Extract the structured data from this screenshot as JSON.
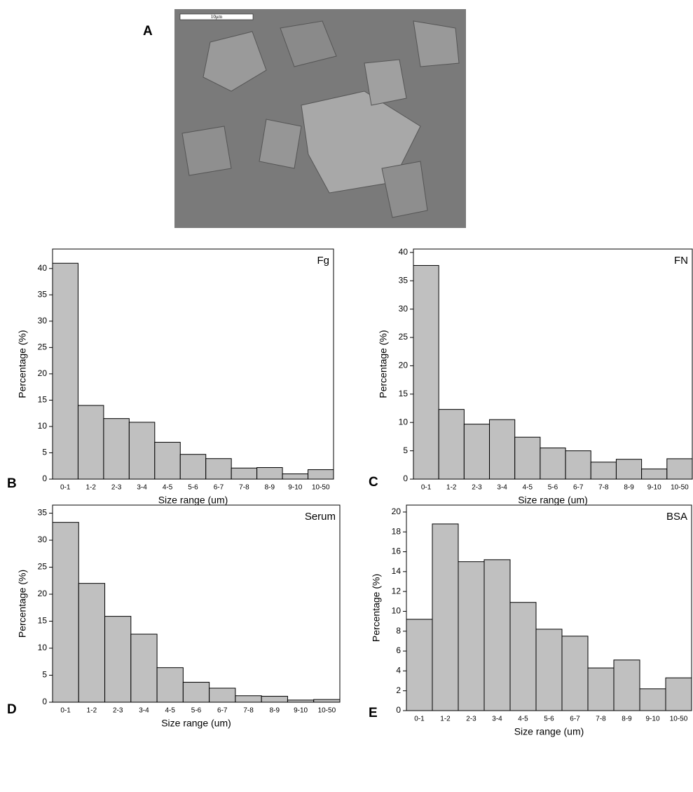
{
  "image": {
    "panel_label": "A",
    "scale_bar": "10μm"
  },
  "chart_data": [
    {
      "type": "bar",
      "panel_label": "B",
      "label": "Fg",
      "xlabel": "Size  range (um)",
      "ylabel": "Percentage (%)",
      "categories": [
        "0-1",
        "1-2",
        "2-3",
        "3-4",
        "4-5",
        "5-6",
        "6-7",
        "7-8",
        "8-9",
        "9-10",
        "10-50"
      ],
      "values": [
        41,
        14,
        11.5,
        10.8,
        7,
        4.7,
        3.9,
        2.1,
        2.2,
        1,
        1.8
      ],
      "color": "#c0c0c0",
      "ylim": [
        0,
        43.7
      ],
      "yticks": [
        0,
        5,
        10,
        15,
        20,
        25,
        30,
        35,
        40
      ]
    },
    {
      "type": "bar",
      "panel_label": "C",
      "label": "FN",
      "xlabel": "Size  range (um)",
      "ylabel": "Percentage (%)",
      "categories": [
        "0-1",
        "1-2",
        "2-3",
        "3-4",
        "4-5",
        "5-6",
        "6-7",
        "7-8",
        "8-9",
        "9-10",
        "10-50"
      ],
      "values": [
        37.7,
        12.3,
        9.7,
        10.5,
        7.4,
        5.5,
        5,
        3,
        3.5,
        1.8,
        3.6
      ],
      "color": "#c0c0c0",
      "ylim": [
        0,
        40.6
      ],
      "yticks": [
        0,
        5,
        10,
        15,
        20,
        25,
        30,
        35,
        40
      ]
    },
    {
      "type": "bar",
      "panel_label": "D",
      "label": "Serum",
      "xlabel": "Size  range (um)",
      "ylabel": "Percentage (%)",
      "categories": [
        "0-1",
        "1-2",
        "2-3",
        "3-4",
        "4-5",
        "5-6",
        "6-7",
        "7-8",
        "8-9",
        "9-10",
        "10-50"
      ],
      "values": [
        33.3,
        22,
        15.9,
        12.6,
        6.4,
        3.7,
        2.6,
        1.2,
        1.1,
        0.4,
        0.5
      ],
      "color": "#c0c0c0",
      "ylim": [
        0,
        36.5
      ],
      "yticks": [
        0,
        5,
        10,
        15,
        20,
        25,
        30,
        35
      ]
    },
    {
      "type": "bar",
      "panel_label": "E",
      "label": "BSA",
      "xlabel": "Size  range (um)",
      "ylabel": "Percentage (%)",
      "categories": [
        "0-1",
        "1-2",
        "2-3",
        "3-4",
        "4-5",
        "5-6",
        "6-7",
        "7-8",
        "8-9",
        "9-10",
        "10-50"
      ],
      "values": [
        9.2,
        18.8,
        15,
        15.2,
        10.9,
        8.2,
        7.5,
        4.3,
        5.1,
        2.2,
        3.3
      ],
      "color": "#c0c0c0",
      "ylim": [
        0,
        20.7
      ],
      "yticks": [
        0,
        2,
        4,
        6,
        8,
        10,
        12,
        14,
        16,
        18,
        20
      ]
    }
  ]
}
